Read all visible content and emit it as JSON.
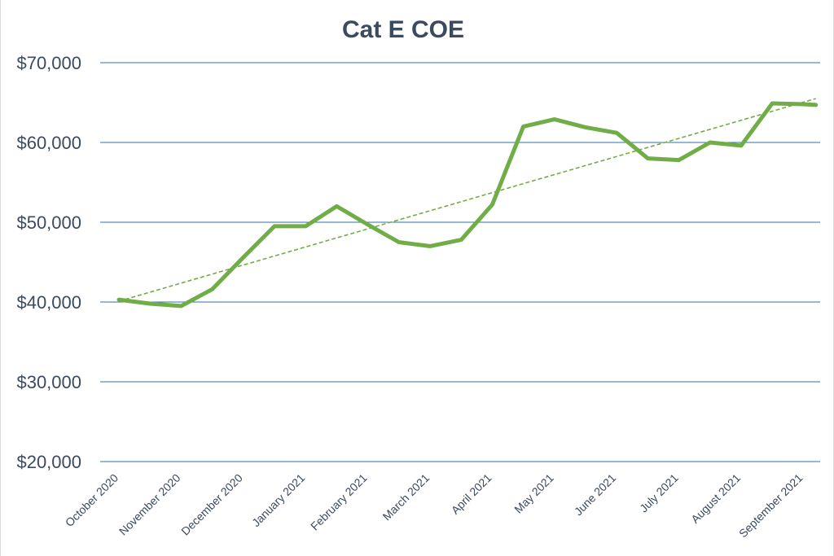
{
  "chart_data": {
    "type": "line",
    "title": "Cat E COE",
    "xlabel": "",
    "ylabel": "",
    "ylim": [
      20000,
      70000
    ],
    "y_ticks": [
      20000,
      30000,
      40000,
      50000,
      60000,
      70000
    ],
    "y_tick_labels": [
      "$20,000",
      "$30,000",
      "$40,000",
      "$50,000",
      "$60,000",
      "$70,000"
    ],
    "grid": true,
    "legend": "none",
    "categories": [
      "October 2020",
      "November 2020",
      "December 2020",
      "January 2021",
      "February 2021",
      "March 2021",
      "April 2021",
      "May 2021",
      "June 2021",
      "July 2021",
      "August 2021",
      "September 2021"
    ],
    "series": [
      {
        "name": "Cat E COE",
        "x": [
          0,
          0.5,
          1,
          1.5,
          2,
          2.5,
          3,
          3.5,
          4,
          4.5,
          5,
          5.5,
          6,
          6.5,
          7,
          7.5,
          8,
          8.5,
          9,
          9.5,
          10,
          10.5,
          11,
          11.2
        ],
        "values": [
          40300,
          39800,
          39500,
          41600,
          45600,
          49500,
          49500,
          52000,
          49700,
          47500,
          47000,
          47800,
          52200,
          62000,
          62900,
          61900,
          61200,
          58000,
          57800,
          60000,
          59600,
          64900,
          64800,
          64700
        ],
        "color": "#70ad47"
      }
    ],
    "trendline": {
      "type": "linear",
      "x": [
        0,
        11.2
      ],
      "values": [
        40100,
        65500
      ],
      "color": "#70ad47",
      "style": "dashed"
    }
  }
}
